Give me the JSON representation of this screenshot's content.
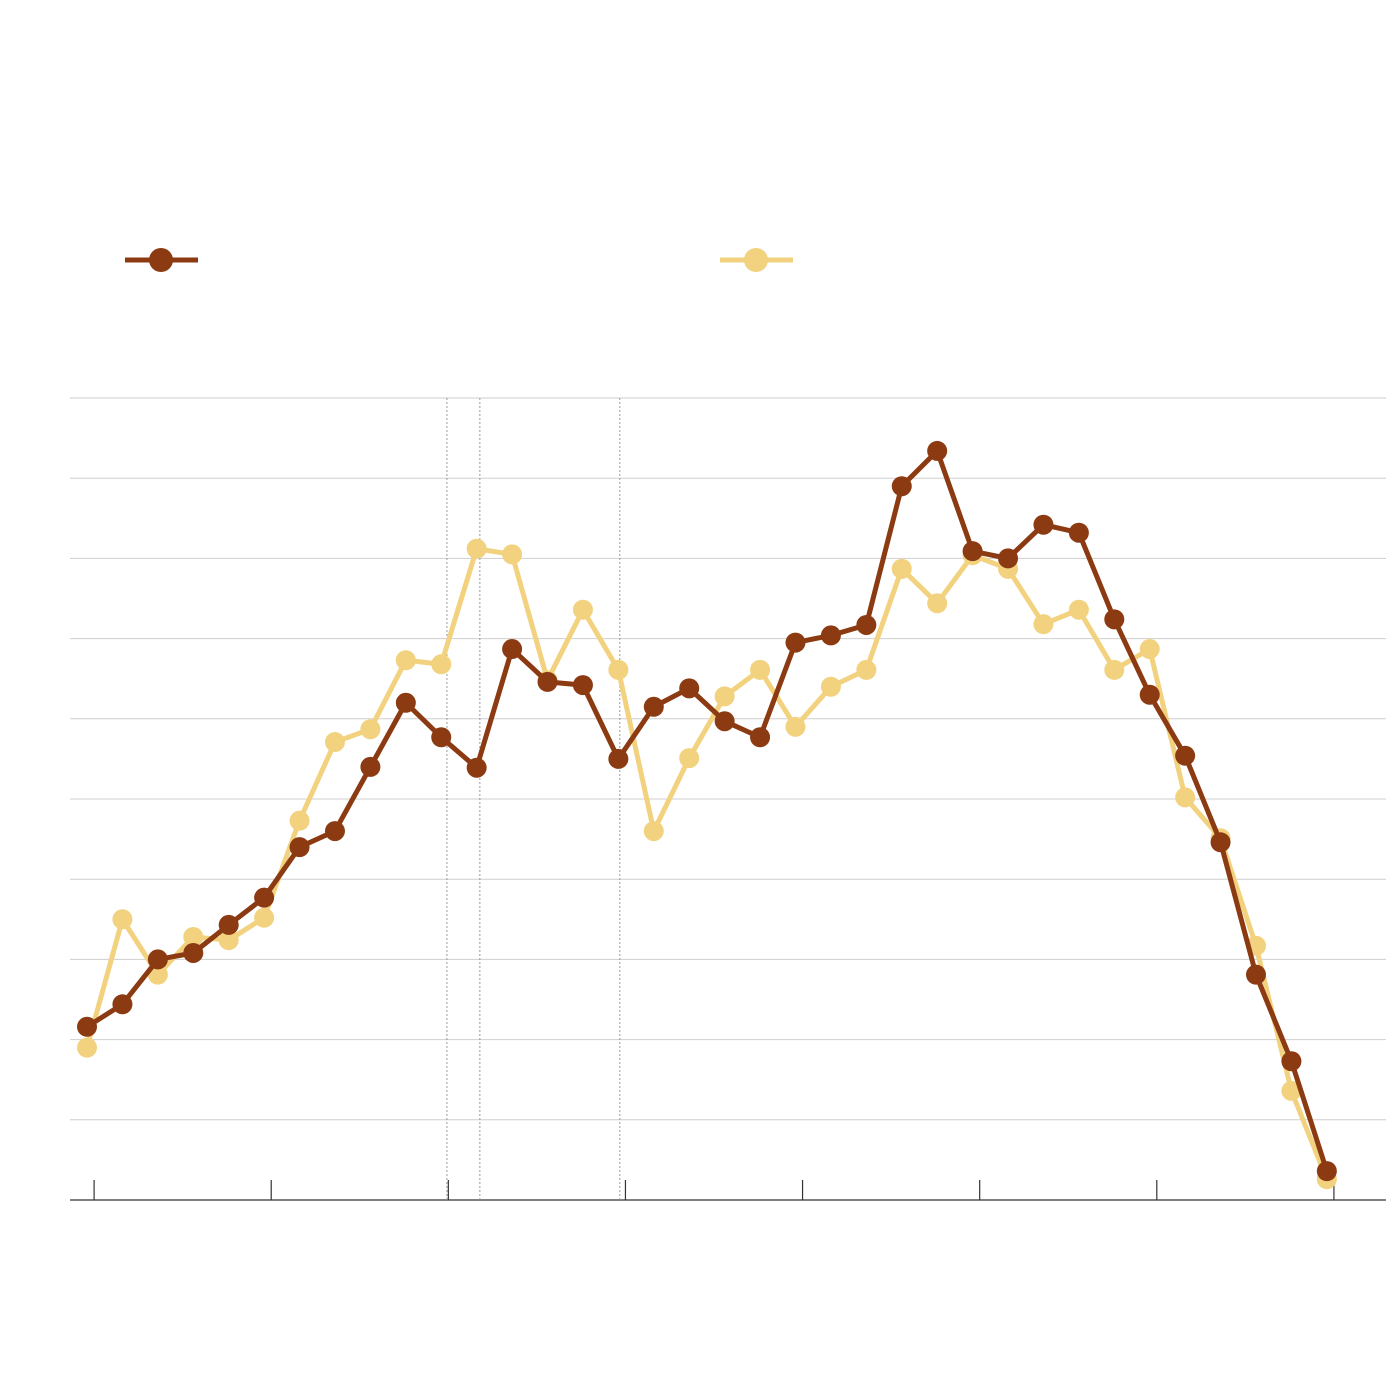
{
  "chart_data": {
    "type": "line",
    "x": [
      0,
      1,
      2,
      3,
      4,
      5,
      6,
      7,
      8,
      9,
      10,
      11,
      12,
      13,
      14,
      15,
      16,
      17,
      18,
      19,
      20,
      21,
      22,
      23,
      24,
      25,
      26,
      27,
      28,
      29,
      30,
      31,
      32,
      33,
      34,
      35
    ],
    "series": [
      {
        "color": "#f2d27e",
        "values": [
          1.9,
          3.5,
          2.81,
          3.28,
          3.24,
          3.52,
          4.73,
          5.71,
          5.87,
          6.73,
          6.68,
          8.12,
          8.05,
          6.48,
          7.36,
          6.61,
          4.6,
          5.51,
          6.28,
          6.61,
          5.9,
          6.4,
          6.61,
          7.87,
          7.44,
          8.04,
          7.87,
          7.18,
          7.36,
          6.61,
          6.87,
          5.02,
          4.51,
          3.17,
          1.36,
          0.26
        ]
      },
      {
        "color": "#8b3a12",
        "values": [
          2.16,
          2.44,
          3.0,
          3.08,
          3.43,
          3.77,
          4.4,
          4.6,
          5.4,
          6.2,
          5.77,
          5.39,
          6.87,
          6.46,
          6.42,
          5.5,
          6.15,
          6.38,
          5.97,
          5.77,
          6.95,
          7.04,
          7.17,
          8.9,
          9.34,
          8.09,
          8.0,
          8.42,
          8.32,
          7.24,
          6.3,
          5.54,
          4.46,
          2.81,
          1.73,
          0.36
        ]
      }
    ],
    "xlim": [
      -0.48,
      36.67
    ],
    "xticks": [
      0.2,
      5.2,
      10.2,
      15.2,
      20.2,
      25.2,
      30.2,
      35.2
    ],
    "ylim": [
      0,
      10
    ],
    "yticks": [
      0,
      1,
      2,
      3,
      4,
      5,
      6,
      7,
      8,
      9,
      10
    ],
    "grid": true,
    "reference_lines": [
      10.16,
      11.09,
      15.04
    ]
  }
}
